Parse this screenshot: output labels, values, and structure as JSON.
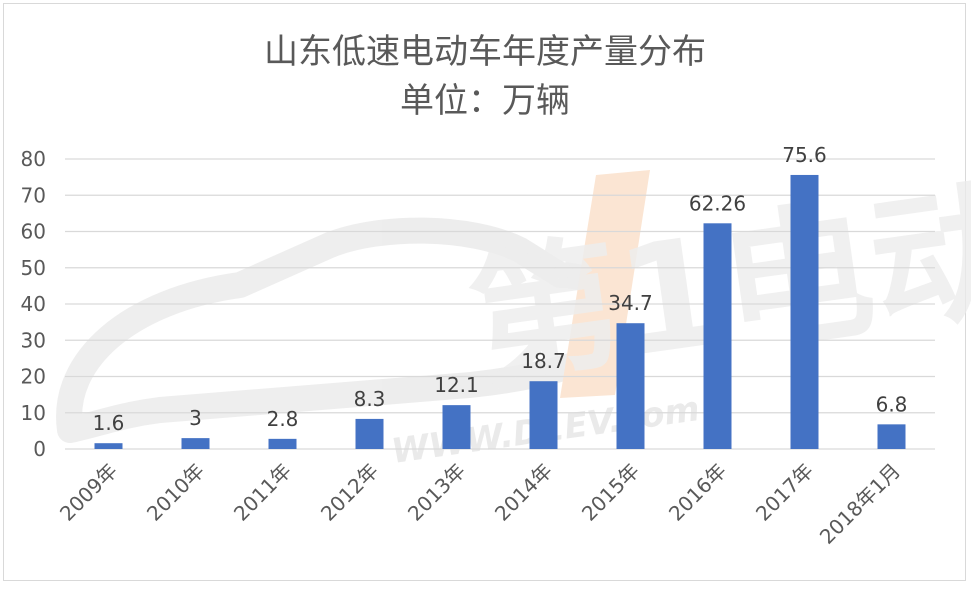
{
  "chart_data": {
    "type": "bar",
    "title": "山东低速电动车年度产量分布",
    "subtitle": "单位：万辆",
    "categories": [
      "2009年",
      "2010年",
      "2011年",
      "2012年",
      "2013年",
      "2014年",
      "2015年",
      "2016年",
      "2017年",
      "2018年1月"
    ],
    "values": [
      1.6,
      3,
      2.8,
      8.3,
      12.1,
      18.7,
      34.7,
      62.26,
      75.6,
      6.8
    ],
    "value_labels": [
      "1.6",
      "3",
      "2.8",
      "8.3",
      "12.1",
      "18.7",
      "34.7",
      "62.26",
      "75.6",
      "6.8"
    ],
    "ylim": [
      0,
      80
    ],
    "yticks": [
      "0",
      "10",
      "20",
      "30",
      "40",
      "50",
      "60",
      "70",
      "80"
    ],
    "xlabel": "",
    "ylabel": "",
    "grid": true,
    "legend": "none",
    "colors": {
      "bar": "#4472c4",
      "grid": "#d9d9d9",
      "text": "#595959",
      "watermark": "#e8e8e8",
      "watermark_accent": "#fbe3cf"
    }
  },
  "watermark": {
    "brand_text": "第1电动",
    "url_text": "WWW.D1EV.com"
  }
}
